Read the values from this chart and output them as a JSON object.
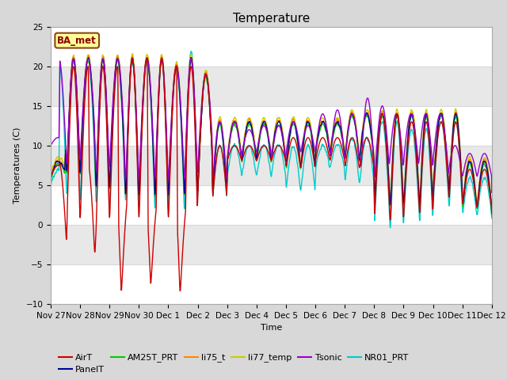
{
  "title": "Temperature",
  "xlabel": "Time",
  "ylabel": "Temperatures (C)",
  "ylim": [
    -10,
    25
  ],
  "fig_bg_color": "#d8d8d8",
  "plot_bg_color": "#ffffff",
  "annotation_text": "BA_met",
  "annotation_box_color": "#ffff99",
  "annotation_box_edge": "#8B4513",
  "series": {
    "AirT": {
      "color": "#cc0000",
      "lw": 1.0
    },
    "PanelT": {
      "color": "#000099",
      "lw": 1.0
    },
    "AM25T_PRT": {
      "color": "#00cc00",
      "lw": 1.0
    },
    "li75_t": {
      "color": "#ff8800",
      "lw": 1.0
    },
    "li77_temp": {
      "color": "#cccc00",
      "lw": 1.0
    },
    "Tsonic": {
      "color": "#9900cc",
      "lw": 1.0
    },
    "NR01_PRT": {
      "color": "#00cccc",
      "lw": 1.0
    }
  },
  "x_tick_labels": [
    "Nov 27",
    "Nov 28",
    "Nov 29",
    "Nov 30",
    "Dec 1",
    "Dec 2",
    "Dec 3",
    "Dec 4",
    "Dec 5",
    "Dec 6",
    "Dec 7",
    "Dec 8",
    "Dec 9",
    "Dec 10",
    "Dec 11",
    "Dec 12"
  ],
  "y_ticks": [
    -10,
    -5,
    0,
    5,
    10,
    15,
    20,
    25
  ],
  "grid_color": "#d8d8d8",
  "title_fontsize": 11,
  "axis_fontsize": 8,
  "tick_fontsize": 7.5,
  "legend_fontsize": 8
}
